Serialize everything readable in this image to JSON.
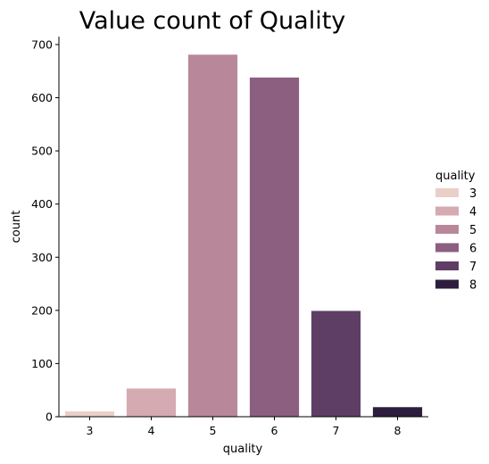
{
  "chart_data": {
    "type": "bar",
    "title": "Value count of Quality",
    "xlabel": "quality",
    "ylabel": "count",
    "categories": [
      "3",
      "4",
      "5",
      "6",
      "7",
      "8"
    ],
    "values": [
      10,
      53,
      681,
      638,
      199,
      18
    ],
    "colors": [
      "#eacfc8",
      "#d5aab1",
      "#b8889a",
      "#8c5f81",
      "#5e3e65",
      "#2d1e3e"
    ],
    "ylim": [
      0,
      715
    ],
    "yticks": [
      0,
      100,
      200,
      300,
      400,
      500,
      600,
      700
    ],
    "grid": false,
    "legend": {
      "title": "quality",
      "placement": "right",
      "entries": [
        "3",
        "4",
        "5",
        "6",
        "7",
        "8"
      ]
    }
  }
}
